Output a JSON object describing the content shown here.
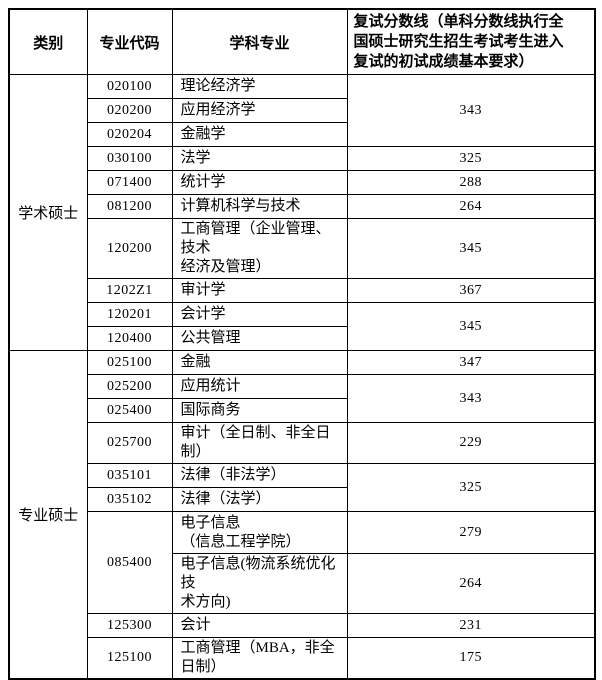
{
  "header": {
    "category": "类别",
    "code": "专业代码",
    "major": "学科专业",
    "score": "复试分数线（单科分数线执行全\n国硕士研究生招生考试考生进入\n复试的初试成绩基本要求）"
  },
  "categories": {
    "academic": "学术硕士",
    "professional": "专业硕士"
  },
  "rows": [
    {
      "code": "020100",
      "major": "理论经济学",
      "score": "343"
    },
    {
      "code": "020200",
      "major": "应用经济学"
    },
    {
      "code": "020204",
      "major": "金融学"
    },
    {
      "code": "030100",
      "major": "法学",
      "score": "325"
    },
    {
      "code": "071400",
      "major": "统计学",
      "score": "288"
    },
    {
      "code": "081200",
      "major": "计算机科学与技术",
      "score": "264"
    },
    {
      "code": "120200",
      "major": "工商管理（企业管理、技术\n经济及管理）",
      "score": "345"
    },
    {
      "code": "1202Z1",
      "major": "审计学",
      "score": "367"
    },
    {
      "code": "120201",
      "major": "会计学",
      "score": "345"
    },
    {
      "code": "120400",
      "major": "公共管理"
    },
    {
      "code": "025100",
      "major": "金融",
      "score": "347"
    },
    {
      "code": "025200",
      "major": "应用统计",
      "score": "343"
    },
    {
      "code": "025400",
      "major": "国际商务"
    },
    {
      "code": "025700",
      "major": "审计（全日制、非全日制）",
      "score": "229"
    },
    {
      "code": "035101",
      "major": "法律（非法学）",
      "score": "325"
    },
    {
      "code": "035102",
      "major": "法律（法学）"
    },
    {
      "code": "085400",
      "major": "电子信息\n（信息工程学院）",
      "score": "279"
    },
    {
      "major": "电子信息(物流系统优化技\n术方向)",
      "score": "264"
    },
    {
      "code": "125300",
      "major": "会计",
      "score": "231"
    },
    {
      "code": "125100",
      "major": "工商管理（MBA，非全日制）",
      "score": "175"
    }
  ]
}
